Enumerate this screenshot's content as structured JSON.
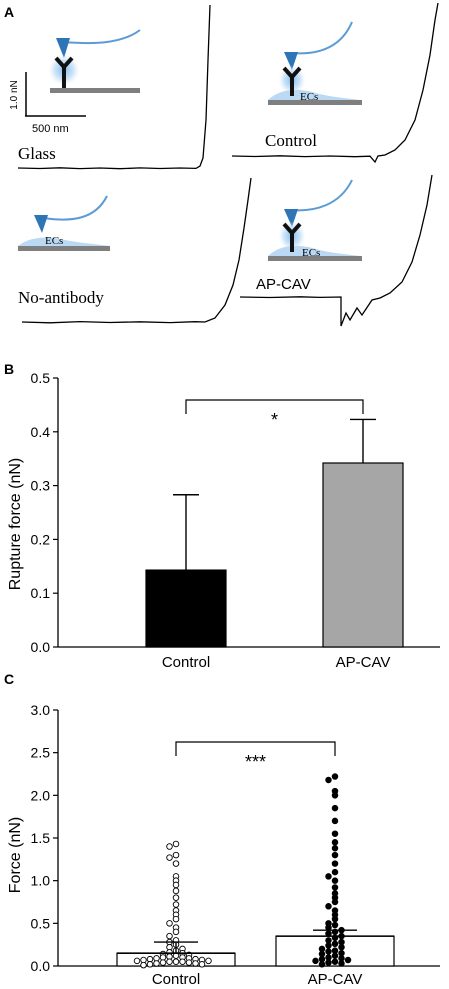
{
  "panelA": {
    "letter": "A",
    "scale_force": "1.0 nN",
    "scale_distance": "500 nm",
    "curves": [
      {
        "label": "Glass",
        "cell_label": ""
      },
      {
        "label": "Control",
        "cell_label": "ECs"
      },
      {
        "label": "No-antibody",
        "cell_label": "ECs"
      },
      {
        "label": "AP-CAV",
        "cell_label": "ECs"
      }
    ]
  },
  "chart_data": [
    {
      "type": "bar",
      "panel": "B",
      "categories": [
        "Control",
        "AP-CAV"
      ],
      "values": [
        0.143,
        0.342
      ],
      "errors": [
        0.14,
        0.081
      ],
      "colors": [
        "#000000",
        "#a6a6a6"
      ],
      "ylabel": "Rupture force (nN)",
      "ylim": [
        0,
        0.5
      ],
      "yticks": [
        "0.0",
        "0.1",
        "0.2",
        "0.3",
        "0.4",
        "0.5"
      ],
      "significance": "*"
    },
    {
      "type": "scatter",
      "panel": "C",
      "categories": [
        "Control",
        "AP-CAV"
      ],
      "bar_values": [
        0.15,
        0.35
      ],
      "errors": [
        0.13,
        0.07
      ],
      "ylabel": "Force (nN)",
      "ylim": [
        0,
        3.0
      ],
      "yticks": [
        "0.0",
        "0.5",
        "1.0",
        "1.5",
        "2.0",
        "2.5",
        "3.0"
      ],
      "significance": "***",
      "series": [
        {
          "values": [
            1.43,
            1.4,
            1.3,
            1.27,
            1.2,
            1.05,
            1.0,
            0.95,
            0.88,
            0.8,
            0.72,
            0.65,
            0.6,
            0.55,
            0.5,
            0.45,
            0.4,
            0.35,
            0.3,
            0.28,
            0.25,
            0.22,
            0.2,
            0.18,
            0.16,
            0.15,
            0.14,
            0.13,
            0.12,
            0.11,
            0.1,
            0.1,
            0.09,
            0.09,
            0.08,
            0.08,
            0.07,
            0.07,
            0.06,
            0.06,
            0.05,
            0.05,
            0.05,
            0.04,
            0.04,
            0.03,
            0.03,
            0.02,
            0.02,
            0.01
          ]
        },
        {
          "values": [
            2.22,
            2.18,
            2.05,
            2.0,
            1.85,
            1.7,
            1.55,
            1.45,
            1.38,
            1.3,
            1.2,
            1.1,
            1.05,
            1.0,
            0.92,
            0.85,
            0.8,
            0.75,
            0.7,
            0.65,
            0.6,
            0.55,
            0.5,
            0.48,
            0.45,
            0.42,
            0.4,
            0.38,
            0.35,
            0.33,
            0.3,
            0.28,
            0.26,
            0.24,
            0.22,
            0.2,
            0.18,
            0.17,
            0.15,
            0.14,
            0.12,
            0.1,
            0.09,
            0.08,
            0.07,
            0.06,
            0.05,
            0.04,
            0.03,
            0.02
          ]
        }
      ]
    }
  ]
}
